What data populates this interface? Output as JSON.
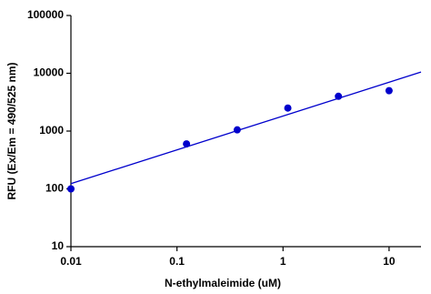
{
  "chart_data": {
    "type": "scatter",
    "x_label": "N-ethylmaleimide (uM)",
    "y_label": "RFU (Ex/Em = 490/525 nm)",
    "x": [
      0.01,
      0.123,
      0.37,
      1.11,
      3.33,
      10
    ],
    "values": [
      100,
      600,
      1050,
      2500,
      4000,
      5000
    ],
    "color": "#0000cc",
    "fit": {
      "x": [
        0.01,
        20
      ],
      "values": [
        123,
        10500
      ],
      "color": "#0000cc"
    },
    "xscale": "log",
    "yscale": "log",
    "xlim": [
      0.01,
      20
    ],
    "ylim": [
      10,
      100000
    ],
    "xticks": [
      0.01,
      0.1,
      1,
      10
    ],
    "yticks": [
      10,
      100,
      1000,
      10000,
      100000
    ]
  }
}
